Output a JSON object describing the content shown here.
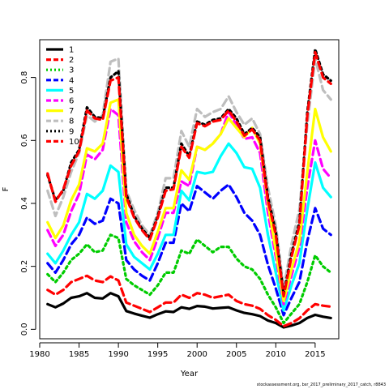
{
  "chart_data": {
    "type": "line",
    "title": "",
    "xlabel": "Year",
    "ylabel": "F",
    "xlim": [
      1980,
      2018
    ],
    "ylim": [
      0,
      0.9
    ],
    "xticks": [
      1980,
      1985,
      1990,
      1995,
      2000,
      2005,
      2010,
      2015
    ],
    "yticks": [
      0.0,
      0.2,
      0.4,
      0.6,
      0.8
    ],
    "ytick_labels": [
      "0.0",
      "0.2",
      "0.4",
      "0.6",
      "0.8"
    ],
    "grid": false,
    "legend_position": "top-left",
    "x": [
      1981,
      1982,
      1983,
      1984,
      1985,
      1986,
      1987,
      1988,
      1989,
      1990,
      1991,
      1992,
      1993,
      1994,
      1995,
      1996,
      1997,
      1998,
      1999,
      2000,
      2001,
      2002,
      2003,
      2004,
      2005,
      2006,
      2007,
      2008,
      2009,
      2010,
      2011,
      2012,
      2013,
      2014,
      2015,
      2016,
      2017
    ],
    "series": [
      {
        "name": "1",
        "color": "#000000",
        "dash": "solid",
        "values": [
          0.08,
          0.07,
          0.082,
          0.1,
          0.105,
          0.115,
          0.1,
          0.098,
          0.115,
          0.105,
          0.058,
          0.05,
          0.043,
          0.037,
          0.048,
          0.057,
          0.055,
          0.07,
          0.065,
          0.074,
          0.072,
          0.066,
          0.068,
          0.07,
          0.06,
          0.052,
          0.048,
          0.042,
          0.028,
          0.02,
          0.006,
          0.012,
          0.02,
          0.036,
          0.046,
          0.04,
          0.036
        ]
      },
      {
        "name": "2",
        "color": "#ff0000",
        "dash": "dashed",
        "values": [
          0.125,
          0.11,
          0.125,
          0.15,
          0.16,
          0.17,
          0.155,
          0.15,
          0.168,
          0.155,
          0.085,
          0.075,
          0.065,
          0.055,
          0.07,
          0.085,
          0.085,
          0.11,
          0.1,
          0.115,
          0.11,
          0.1,
          0.105,
          0.11,
          0.09,
          0.08,
          0.075,
          0.065,
          0.045,
          0.03,
          0.01,
          0.02,
          0.035,
          0.06,
          0.08,
          0.075,
          0.072
        ]
      },
      {
        "name": "3",
        "color": "#00cc00",
        "dash": "dotted",
        "values": [
          0.175,
          0.15,
          0.18,
          0.22,
          0.24,
          0.27,
          0.245,
          0.25,
          0.3,
          0.29,
          0.16,
          0.14,
          0.125,
          0.11,
          0.14,
          0.18,
          0.18,
          0.25,
          0.24,
          0.285,
          0.265,
          0.245,
          0.262,
          0.262,
          0.225,
          0.2,
          0.19,
          0.16,
          0.11,
          0.07,
          0.02,
          0.05,
          0.08,
          0.15,
          0.235,
          0.2,
          0.18
        ]
      },
      {
        "name": "4",
        "color": "#0000ff",
        "dash": "dashed",
        "values": [
          0.21,
          0.18,
          0.22,
          0.27,
          0.3,
          0.355,
          0.335,
          0.345,
          0.415,
          0.4,
          0.22,
          0.19,
          0.17,
          0.155,
          0.21,
          0.275,
          0.275,
          0.4,
          0.375,
          0.455,
          0.435,
          0.415,
          0.44,
          0.46,
          0.42,
          0.37,
          0.345,
          0.3,
          0.205,
          0.13,
          0.045,
          0.1,
          0.15,
          0.28,
          0.385,
          0.32,
          0.3
        ]
      },
      {
        "name": "5",
        "color": "#00ffff",
        "dash": "solid",
        "values": [
          0.24,
          0.21,
          0.25,
          0.3,
          0.34,
          0.43,
          0.415,
          0.44,
          0.52,
          0.5,
          0.27,
          0.23,
          0.21,
          0.19,
          0.24,
          0.3,
          0.3,
          0.44,
          0.41,
          0.5,
          0.495,
          0.5,
          0.55,
          0.59,
          0.56,
          0.515,
          0.51,
          0.45,
          0.3,
          0.18,
          0.06,
          0.14,
          0.21,
          0.38,
          0.53,
          0.45,
          0.42
        ]
      },
      {
        "name": "6",
        "color": "#ff00ff",
        "dash": "dashed",
        "values": [
          0.315,
          0.265,
          0.3,
          0.375,
          0.43,
          0.555,
          0.54,
          0.57,
          0.7,
          0.68,
          0.34,
          0.28,
          0.245,
          0.22,
          0.29,
          0.37,
          0.37,
          0.47,
          0.455,
          0.58,
          0.57,
          0.59,
          0.62,
          0.69,
          0.65,
          0.605,
          0.61,
          0.56,
          0.37,
          0.23,
          0.08,
          0.17,
          0.26,
          0.45,
          0.6,
          0.51,
          0.48
        ]
      },
      {
        "name": "7",
        "color": "#ffff00",
        "dash": "solid",
        "values": [
          0.34,
          0.29,
          0.33,
          0.41,
          0.46,
          0.575,
          0.565,
          0.59,
          0.72,
          0.73,
          0.37,
          0.3,
          0.265,
          0.24,
          0.31,
          0.385,
          0.385,
          0.505,
          0.475,
          0.58,
          0.57,
          0.59,
          0.62,
          0.67,
          0.64,
          0.61,
          0.64,
          0.59,
          0.4,
          0.25,
          0.09,
          0.19,
          0.28,
          0.5,
          0.7,
          0.61,
          0.565
        ]
      },
      {
        "name": "8",
        "color": "#bebebe",
        "dash": "dashed",
        "values": [
          0.44,
          0.36,
          0.42,
          0.5,
          0.56,
          0.68,
          0.66,
          0.68,
          0.85,
          0.86,
          0.44,
          0.38,
          0.33,
          0.3,
          0.37,
          0.48,
          0.48,
          0.63,
          0.58,
          0.7,
          0.675,
          0.69,
          0.7,
          0.74,
          0.69,
          0.65,
          0.67,
          0.62,
          0.45,
          0.33,
          0.13,
          0.27,
          0.38,
          0.65,
          0.86,
          0.76,
          0.73
        ]
      },
      {
        "name": "9",
        "color": "#000000",
        "dash": "dotted",
        "values": [
          0.49,
          0.41,
          0.44,
          0.53,
          0.57,
          0.705,
          0.675,
          0.67,
          0.8,
          0.82,
          0.43,
          0.36,
          0.32,
          0.29,
          0.36,
          0.45,
          0.45,
          0.59,
          0.55,
          0.66,
          0.65,
          0.665,
          0.67,
          0.7,
          0.67,
          0.62,
          0.64,
          0.61,
          0.42,
          0.31,
          0.11,
          0.24,
          0.34,
          0.69,
          0.89,
          0.81,
          0.79
        ]
      },
      {
        "name": "10",
        "color": "#ff0000",
        "dash": "dashed",
        "values": [
          0.495,
          0.405,
          0.445,
          0.52,
          0.565,
          0.695,
          0.67,
          0.665,
          0.79,
          0.8,
          0.42,
          0.355,
          0.315,
          0.285,
          0.355,
          0.44,
          0.445,
          0.58,
          0.545,
          0.655,
          0.645,
          0.66,
          0.665,
          0.695,
          0.66,
          0.615,
          0.635,
          0.6,
          0.41,
          0.3,
          0.105,
          0.23,
          0.33,
          0.68,
          0.88,
          0.8,
          0.78
        ]
      }
    ]
  },
  "footer": {
    "credit": "stockassessment.org, bsr_2017_preliminary_2017_catch, r8843"
  }
}
